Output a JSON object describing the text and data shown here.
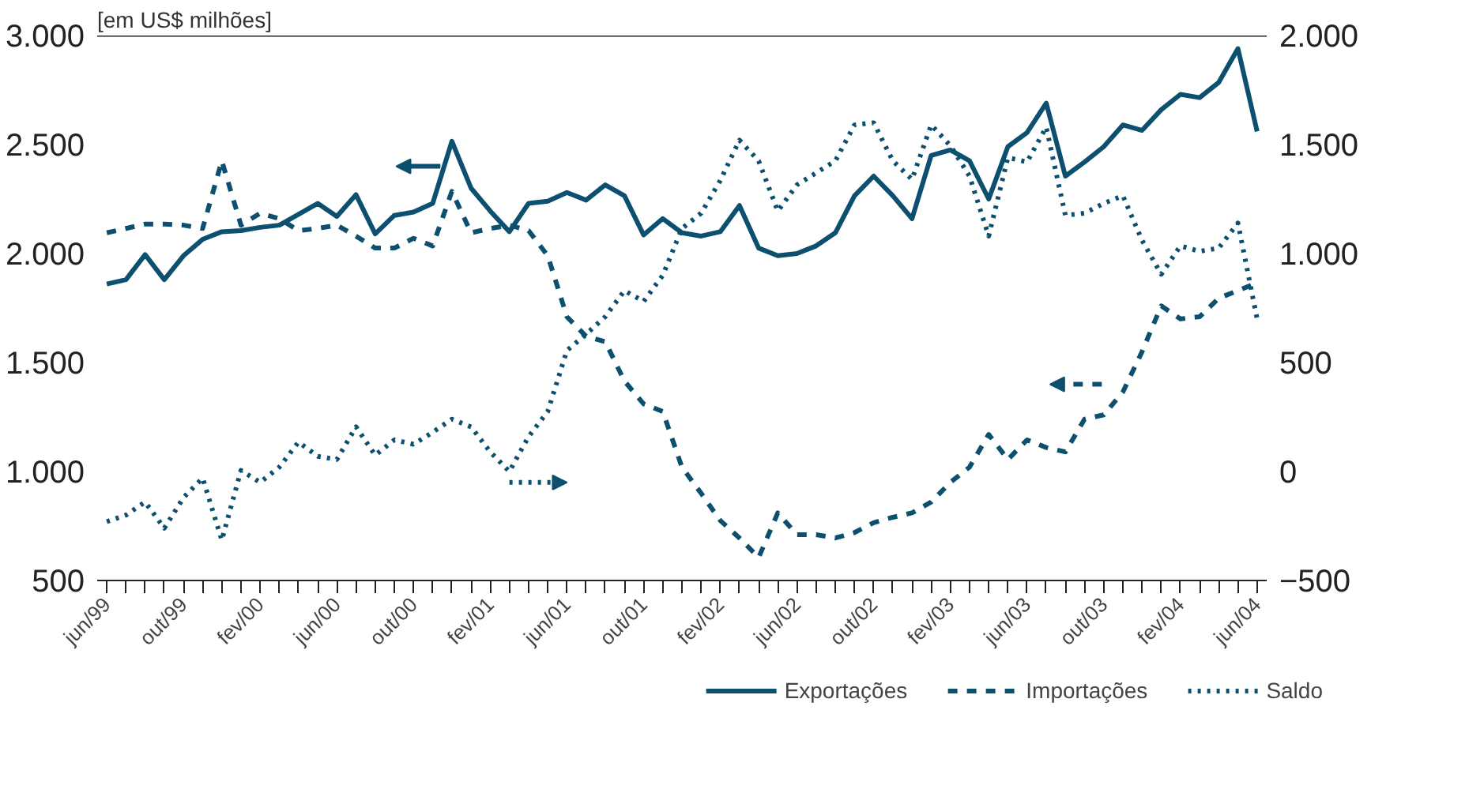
{
  "chart_data": {
    "type": "line",
    "ylabel": "[em US$ milhões]",
    "categories": [
      "jun/99",
      null,
      null,
      null,
      "out/99",
      null,
      null,
      null,
      "fev/00",
      null,
      null,
      null,
      "jun/00",
      null,
      null,
      null,
      "out/00",
      null,
      null,
      null,
      "fev/01",
      null,
      null,
      null,
      "jun/01",
      null,
      null,
      null,
      "out/01",
      null,
      null,
      null,
      "fev/02",
      null,
      null,
      null,
      "jun/02",
      null,
      null,
      null,
      "out/02",
      null,
      null,
      null,
      "fev/03",
      null,
      null,
      null,
      "jun/03",
      null,
      null,
      null,
      "out/03",
      null,
      null,
      null,
      "fev/04",
      null,
      null,
      null,
      "jun/04"
    ],
    "series": [
      {
        "name": "Exportações",
        "color": "#0d4f6e",
        "line_style": "solid",
        "values": [
          1860,
          1880,
          1995,
          1880,
          1990,
          2065,
          2100,
          2105,
          2120,
          2130,
          2180,
          2230,
          2170,
          2270,
          2090,
          2175,
          2190,
          2230,
          2515,
          2300,
          2195,
          2100,
          2230,
          2240,
          2280,
          2245,
          2315,
          2265,
          2085,
          2160,
          2095,
          2080,
          2100,
          2220,
          2025,
          1990,
          2000,
          2035,
          2095,
          2265,
          2355,
          2265,
          2160,
          2450,
          2475,
          2425,
          2250,
          2490,
          2555,
          2690,
          2355,
          2420,
          2490,
          2590,
          2565,
          2660,
          2730,
          2715,
          2785,
          2940,
          2560
        ]
      },
      {
        "name": "Importações",
        "color": "#0d4f6e",
        "line_style": "dashed",
        "values": [
          2095,
          2115,
          2135,
          2135,
          2130,
          2115,
          2425,
          2130,
          2185,
          2160,
          2105,
          2115,
          2130,
          2080,
          2025,
          2025,
          2070,
          2035,
          2285,
          2095,
          2115,
          2130,
          2105,
          1990,
          1710,
          1620,
          1595,
          1415,
          1310,
          1275,
          1020,
          900,
          775,
          695,
          605,
          810,
          710,
          710,
          695,
          720,
          765,
          790,
          810,
          860,
          950,
          1020,
          1170,
          1055,
          1145,
          1110,
          1090,
          1240,
          1260,
          1365,
          1550,
          1760,
          1700,
          1710,
          1795,
          1830,
          1865
        ]
      },
      {
        "name": "Saldo",
        "color": "#0d4f6e",
        "line_style": "dotted",
        "axis": "y2",
        "values": [
          -230,
          -200,
          -140,
          -260,
          -120,
          -30,
          -315,
          5,
          -50,
          20,
          135,
          70,
          55,
          205,
          75,
          145,
          125,
          180,
          240,
          205,
          90,
          0,
          160,
          275,
          555,
          630,
          710,
          830,
          780,
          900,
          1115,
          1185,
          1335,
          1520,
          1425,
          1195,
          1315,
          1370,
          1425,
          1590,
          1600,
          1425,
          1340,
          1590,
          1495,
          1355,
          1080,
          1440,
          1420,
          1580,
          1175,
          1185,
          1230,
          1265,
          1060,
          905,
          1035,
          1010,
          1025,
          1140,
          700
        ]
      }
    ],
    "ylim": [
      500,
      3000
    ],
    "yticks": [
      {
        "value": 500,
        "label": "500"
      },
      {
        "value": 1000,
        "label": "1.000"
      },
      {
        "value": 1500,
        "label": "1.500"
      },
      {
        "value": 2000,
        "label": "2.000"
      },
      {
        "value": 2500,
        "label": "2.500"
      },
      {
        "value": 3000,
        "label": "3.000"
      }
    ],
    "y2lim": [
      -500,
      2000
    ],
    "y2ticks": [
      {
        "value": -500,
        "label": "−500"
      },
      0,
      500,
      {
        "value": 1000,
        "label": "1.000"
      },
      {
        "value": 1500,
        "label": "1.500"
      },
      {
        "value": 2000,
        "label": "2.000"
      }
    ],
    "grid": false,
    "legend": "bottom right"
  }
}
